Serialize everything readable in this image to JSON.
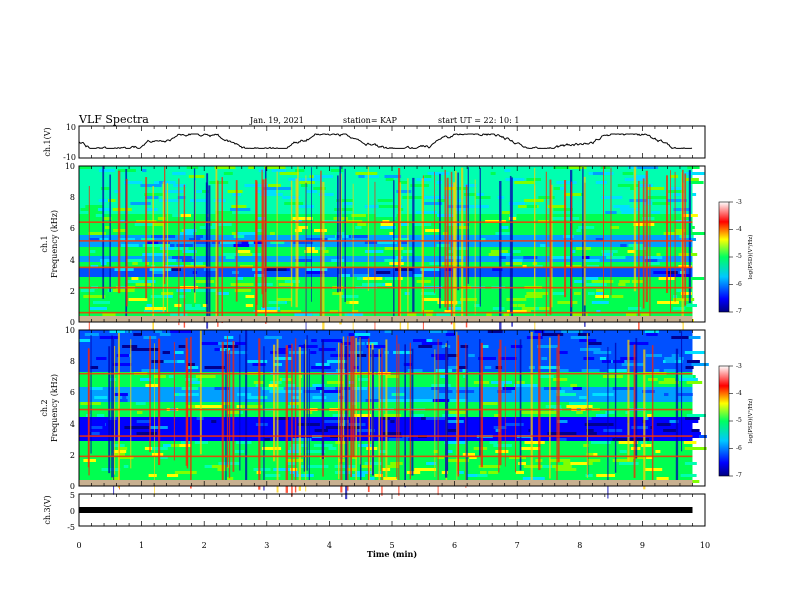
{
  "header": {
    "title": "VLF Spectra",
    "date": "Jan. 19, 2021",
    "station": "station= KAP",
    "start": "start  UT =  22: 10: 1"
  },
  "chart_data": [
    {
      "type": "line",
      "panel": "ch1-waveform",
      "ylabel": "ch.1(V)",
      "ylim": [
        -10,
        10
      ],
      "yticks": [
        "10",
        "-10"
      ],
      "xlim": [
        0,
        10
      ],
      "trace_range": [
        -4,
        5
      ],
      "color": "#000000"
    },
    {
      "type": "heatmap",
      "panel": "ch1-spectrogram",
      "ylabel_top": "ch.1",
      "ylabel": "Frequency (kHz)",
      "ylim": [
        0,
        10
      ],
      "yticks": [
        "0",
        "2",
        "4",
        "6",
        "8",
        "10"
      ],
      "xlim": [
        0,
        10
      ],
      "data_extent_min": 9.8,
      "colorbar": {
        "label": "log(PSD)(V²/Hz)",
        "range": [
          -7,
          -3
        ],
        "ticks": [
          "-3",
          "-4",
          "-5",
          "-6",
          "-7"
        ]
      },
      "bands_khz": [
        0.6,
        2.2,
        3.5,
        5.2,
        6.4
      ],
      "features": "horizontal red interference lines near 0.6, 2.2, 3.5 and 6.4 kHz; dark blue (low PSD) bands near 3-3.5, 4.3 and 5-5.5 kHz; vertical red/yellow impulsive sferics across the whole record"
    },
    {
      "type": "heatmap",
      "panel": "ch2-spectrogram",
      "ylabel_top": "ch.2",
      "ylabel": "Frequency (kHz)",
      "ylim": [
        0,
        10
      ],
      "yticks": [
        "0",
        "2",
        "4",
        "6",
        "8",
        "10"
      ],
      "xlim": [
        0,
        10
      ],
      "data_extent_min": 9.8,
      "colorbar": {
        "label": "log(PSD)(V²/Hz)",
        "range": [
          -7,
          -3
        ],
        "ticks": [
          "-3",
          "-4",
          "-5",
          "-6",
          "-7"
        ]
      },
      "bands_khz": [
        1.9,
        3.2,
        4.9,
        7.2
      ],
      "features": "similar to ch.1 but with more dark-blue area at 3-4.5 kHz and 7.5-10 kHz; horizontal lines near 1.9, 3.2 and 4.9 kHz"
    },
    {
      "type": "line",
      "panel": "ch3-waveform",
      "ylabel": "ch.3(V)",
      "ylim": [
        -5,
        5
      ],
      "yticks": [
        "5",
        "0",
        "-5"
      ],
      "xlim": [
        0,
        10
      ],
      "trace_level": 0,
      "color": "#000000"
    }
  ],
  "xaxis": {
    "label": "Time (min)",
    "ticks": [
      "0",
      "1",
      "2",
      "3",
      "4",
      "5",
      "6",
      "7",
      "8",
      "9",
      "10"
    ]
  }
}
